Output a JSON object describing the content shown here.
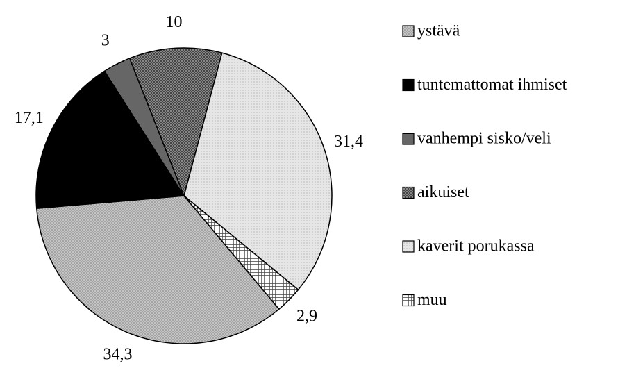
{
  "chart_data": {
    "type": "pie",
    "categories": [
      "ystävä",
      "tuntemattomat ihmiset",
      "vanhempi sisko/veli",
      "aikuiset",
      "kaverit porukassa",
      "muu"
    ],
    "values": [
      34.3,
      17.1,
      3,
      10,
      31.4,
      2.9
    ],
    "value_labels": [
      "34,3",
      "17,1",
      "3",
      "10",
      "31,4",
      "2,9"
    ],
    "colors": [
      "#c4c4c4",
      "#000000",
      "#ffffff",
      "#9a9a9a",
      "#e6e6e6",
      "#ffffff"
    ],
    "legend": "right"
  }
}
